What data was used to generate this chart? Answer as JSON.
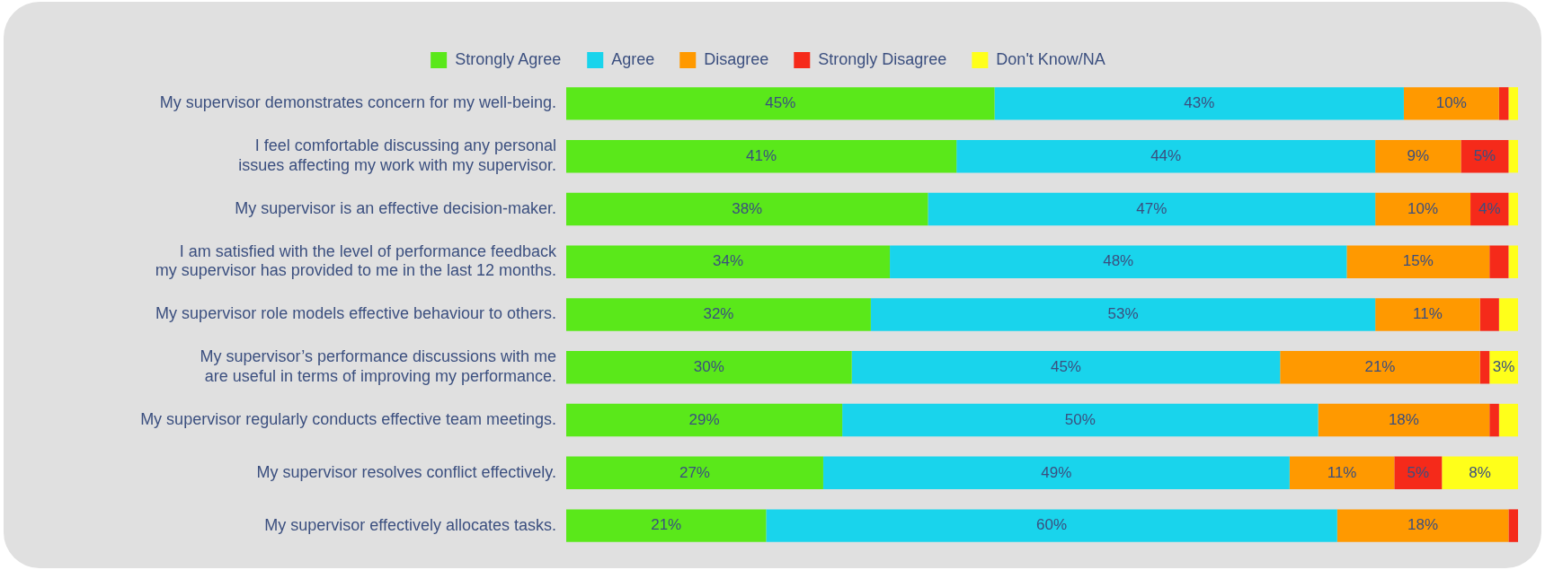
{
  "chart_data": {
    "type": "bar",
    "orientation": "horizontal",
    "stacked": true,
    "legend": "top",
    "tick_labels": "y",
    "categories": [
      "My supervisor demonstrates concern for my well-being.",
      "I feel comfortable discussing any personal issues affecting my work with my supervisor.",
      "My supervisor is an effective decision-maker.",
      "I am satisfied with the level of performance feedback my supervisor has provided to me in the last 12 months.",
      "My supervisor role models effective behaviour to others.",
      "My supervisor’s performance discussions with me are useful in terms of improving my performance.",
      "My supervisor regularly conducts effective team meetings.",
      "My supervisor resolves conflict effectively.",
      "My supervisor effectively allocates tasks."
    ],
    "series": [
      {
        "name": "Strongly Agree",
        "color": "#5ae81a",
        "values": [
          45,
          41,
          38,
          34,
          32,
          30,
          29,
          27,
          21
        ],
        "value_labels": [
          "45%",
          "41%",
          "38%",
          "34%",
          "32%",
          "30%",
          "29%",
          "27%",
          "21%"
        ]
      },
      {
        "name": "Agree",
        "color": "#19d4ec",
        "values": [
          43,
          44,
          47,
          48,
          53,
          45,
          50,
          49,
          60
        ],
        "value_labels": [
          "43%",
          "44%",
          "47%",
          "48%",
          "53%",
          "45%",
          "50%",
          "49%",
          "60%"
        ]
      },
      {
        "name": "Disagree",
        "color": "#ff9900",
        "values": [
          10,
          9,
          10,
          15,
          11,
          21,
          18,
          11,
          18
        ],
        "value_labels": [
          "10%",
          "9%",
          "10%",
          "15%",
          "11%",
          "21%",
          "18%",
          "11%",
          "18%"
        ]
      },
      {
        "name": "Strongly Disagree",
        "color": "#f52a1a",
        "values": [
          1,
          5,
          4,
          2,
          2,
          1,
          1,
          5,
          1
        ],
        "value_labels": [
          null,
          "5%",
          "4%",
          null,
          null,
          null,
          null,
          "5%",
          null
        ]
      },
      {
        "name": "Don't Know/NA",
        "color": "#ffff1a",
        "values": [
          1,
          1,
          1,
          1,
          2,
          3,
          2,
          8,
          0
        ],
        "value_labels": [
          null,
          null,
          null,
          null,
          null,
          "3%",
          null,
          "8%",
          null
        ]
      }
    ]
  }
}
